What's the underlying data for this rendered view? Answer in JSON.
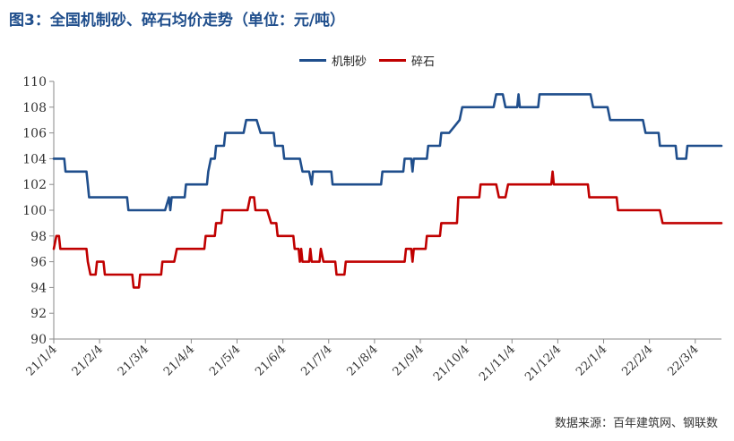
{
  "title": "图3：全国机制砂、碎石均价走势（单位：元/吨）",
  "source": "数据来源：百年建筑网、钢联数",
  "colors": {
    "series1": "#1f4e8c",
    "series2": "#c00000"
  },
  "chart_data": {
    "type": "line",
    "ylim": [
      90,
      110
    ],
    "yticks": [
      90,
      92,
      94,
      96,
      98,
      100,
      102,
      104,
      106,
      108,
      110
    ],
    "xlim": [
      0,
      51
    ],
    "xticks": [
      {
        "label": "21/1/4",
        "x": 0
      },
      {
        "label": "21/2/4",
        "x": 3.5
      },
      {
        "label": "21/3/4",
        "x": 7
      },
      {
        "label": "21/4/4",
        "x": 10.5
      },
      {
        "label": "21/5/4",
        "x": 14
      },
      {
        "label": "21/6/4",
        "x": 17.5
      },
      {
        "label": "21/7/4",
        "x": 21
      },
      {
        "label": "21/8/4",
        "x": 24.5
      },
      {
        "label": "21/9/4",
        "x": 28
      },
      {
        "label": "21/10/4",
        "x": 31.5
      },
      {
        "label": "21/11/4",
        "x": 35
      },
      {
        "label": "21/12/4",
        "x": 38.5
      },
      {
        "label": "22/1/4",
        "x": 42
      },
      {
        "label": "22/2/4",
        "x": 45.5
      },
      {
        "label": "22/3/4",
        "x": 49
      }
    ],
    "grid": false,
    "legend": "top-center",
    "series": [
      {
        "name": "机制砂",
        "color": "#1f4e8c",
        "points": [
          [
            0,
            104
          ],
          [
            0.8,
            104
          ],
          [
            0.9,
            103
          ],
          [
            2.5,
            103
          ],
          [
            2.6,
            102
          ],
          [
            2.7,
            101
          ],
          [
            5.6,
            101
          ],
          [
            5.7,
            100
          ],
          [
            8.5,
            100
          ],
          [
            8.8,
            101
          ],
          [
            8.9,
            100
          ],
          [
            9,
            101
          ],
          [
            10,
            101
          ],
          [
            10.1,
            102
          ],
          [
            11.7,
            102
          ],
          [
            11.8,
            103
          ],
          [
            12,
            104
          ],
          [
            12.3,
            104
          ],
          [
            12.4,
            105
          ],
          [
            13,
            105
          ],
          [
            13.1,
            106
          ],
          [
            14.5,
            106
          ],
          [
            14.7,
            107
          ],
          [
            15.5,
            107
          ],
          [
            15.8,
            106
          ],
          [
            16.8,
            106
          ],
          [
            16.9,
            105
          ],
          [
            17.5,
            105
          ],
          [
            17.6,
            104
          ],
          [
            18.8,
            104
          ],
          [
            19,
            103
          ],
          [
            19.5,
            103
          ],
          [
            19.7,
            102
          ],
          [
            19.8,
            103
          ],
          [
            21.2,
            103
          ],
          [
            21.3,
            102
          ],
          [
            25,
            102
          ],
          [
            25.1,
            103
          ],
          [
            26.7,
            103
          ],
          [
            26.8,
            104
          ],
          [
            27.3,
            104
          ],
          [
            27.4,
            103
          ],
          [
            27.5,
            104
          ],
          [
            28.5,
            104
          ],
          [
            28.6,
            105
          ],
          [
            29.5,
            105
          ],
          [
            29.6,
            106
          ],
          [
            30.2,
            106
          ],
          [
            31,
            107
          ],
          [
            31.2,
            108
          ],
          [
            33.6,
            108
          ],
          [
            33.8,
            109
          ],
          [
            34.3,
            109
          ],
          [
            34.5,
            108
          ],
          [
            35.4,
            108
          ],
          [
            35.5,
            109
          ],
          [
            35.6,
            108
          ],
          [
            37,
            108
          ],
          [
            37.1,
            109
          ],
          [
            41,
            109
          ],
          [
            41.2,
            108
          ],
          [
            42.3,
            108
          ],
          [
            42.5,
            107
          ],
          [
            45,
            107
          ],
          [
            45.2,
            106
          ],
          [
            46.2,
            106
          ],
          [
            46.3,
            105
          ],
          [
            47.5,
            105
          ],
          [
            47.6,
            104
          ],
          [
            48.3,
            104
          ],
          [
            48.4,
            105
          ],
          [
            51,
            105
          ]
        ]
      },
      {
        "name": "碎石",
        "color": "#c00000",
        "points": [
          [
            0,
            97
          ],
          [
            0.2,
            98
          ],
          [
            0.4,
            98
          ],
          [
            0.5,
            97
          ],
          [
            2.5,
            97
          ],
          [
            2.6,
            96
          ],
          [
            2.8,
            95
          ],
          [
            3.2,
            95
          ],
          [
            3.3,
            96
          ],
          [
            3.8,
            96
          ],
          [
            3.9,
            95
          ],
          [
            6,
            95
          ],
          [
            6.1,
            94
          ],
          [
            6.5,
            94
          ],
          [
            6.6,
            95
          ],
          [
            8.2,
            95
          ],
          [
            8.3,
            96
          ],
          [
            9.2,
            96
          ],
          [
            9.4,
            97
          ],
          [
            11.5,
            97
          ],
          [
            11.6,
            98
          ],
          [
            12.3,
            98
          ],
          [
            12.4,
            99
          ],
          [
            12.8,
            99
          ],
          [
            12.9,
            100
          ],
          [
            14.8,
            100
          ],
          [
            15,
            101
          ],
          [
            15.3,
            101
          ],
          [
            15.4,
            100
          ],
          [
            16.3,
            100
          ],
          [
            16.6,
            99
          ],
          [
            17,
            99
          ],
          [
            17.1,
            98
          ],
          [
            18.3,
            98
          ],
          [
            18.4,
            97
          ],
          [
            18.7,
            97
          ],
          [
            18.8,
            96
          ],
          [
            18.9,
            97
          ],
          [
            19,
            96
          ],
          [
            19.5,
            96
          ],
          [
            19.6,
            97
          ],
          [
            19.7,
            96
          ],
          [
            20.3,
            96
          ],
          [
            20.4,
            97
          ],
          [
            20.6,
            96
          ],
          [
            21.5,
            96
          ],
          [
            21.6,
            95
          ],
          [
            22.2,
            95
          ],
          [
            22.3,
            96
          ],
          [
            26.8,
            96
          ],
          [
            26.9,
            97
          ],
          [
            27.3,
            97
          ],
          [
            27.4,
            96
          ],
          [
            27.5,
            97
          ],
          [
            28.4,
            97
          ],
          [
            28.5,
            98
          ],
          [
            29.5,
            98
          ],
          [
            29.6,
            99
          ],
          [
            30.8,
            99
          ],
          [
            30.9,
            101
          ],
          [
            32.5,
            101
          ],
          [
            32.6,
            102
          ],
          [
            33.8,
            102
          ],
          [
            34,
            101
          ],
          [
            34.5,
            101
          ],
          [
            34.7,
            102
          ],
          [
            38,
            102
          ],
          [
            38.1,
            103
          ],
          [
            38.2,
            102
          ],
          [
            40.8,
            102
          ],
          [
            40.9,
            101
          ],
          [
            43,
            101
          ],
          [
            43.1,
            100
          ],
          [
            46.3,
            100
          ],
          [
            46.5,
            99
          ],
          [
            51,
            99
          ]
        ]
      }
    ]
  }
}
